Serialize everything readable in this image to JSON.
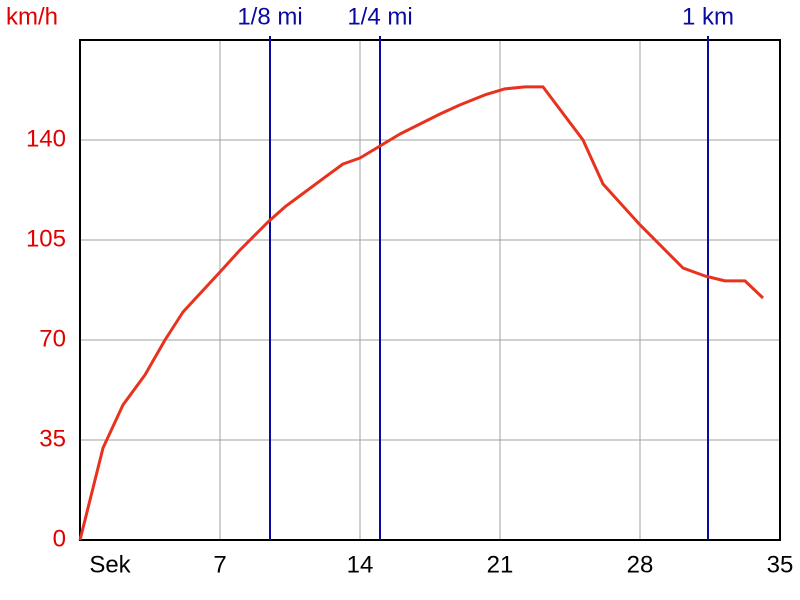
{
  "chart_data": {
    "type": "line",
    "y_label": "km/h",
    "x": [
      0,
      1.15,
      2.15,
      3.25,
      4.25,
      5.15,
      7,
      8,
      9.4,
      10.25,
      11.25,
      12.25,
      13.15,
      14,
      15,
      16,
      17,
      18,
      19,
      20.25,
      21.25,
      22.25,
      23.15,
      25.15,
      26.15,
      28,
      30.15,
      31.25,
      32.25,
      33.25,
      34.15
    ],
    "series": [
      {
        "color": "#e8321e",
        "values": [
          0,
          32.2,
          47.3,
          57.8,
          70,
          79.8,
          93.8,
          101.5,
          111.3,
          116.6,
          121.8,
          127,
          131.6,
          133.7,
          137.9,
          142.1,
          145.6,
          149.1,
          152.3,
          155.8,
          157.9,
          158.6,
          158.6,
          140,
          124.6,
          110.3,
          95.2,
          92.4,
          90.7,
          90.7,
          84.7
        ]
      }
    ],
    "xlim": [
      0,
      35
    ],
    "xticks": [
      {
        "value": 0,
        "label": "Sek"
      },
      7,
      14,
      21,
      28,
      35
    ],
    "ylim": [
      0,
      175
    ],
    "yticks": [
      0,
      35,
      70,
      105,
      140
    ],
    "grid": true,
    "tick_color": "#e00000",
    "markers": [
      {
        "label": "1/8 mi",
        "x": 9.5
      },
      {
        "label": "1/4 mi",
        "x": 15
      },
      {
        "label": "1 km",
        "x": 31.4
      }
    ],
    "marker_color": "#0a0aa0"
  }
}
